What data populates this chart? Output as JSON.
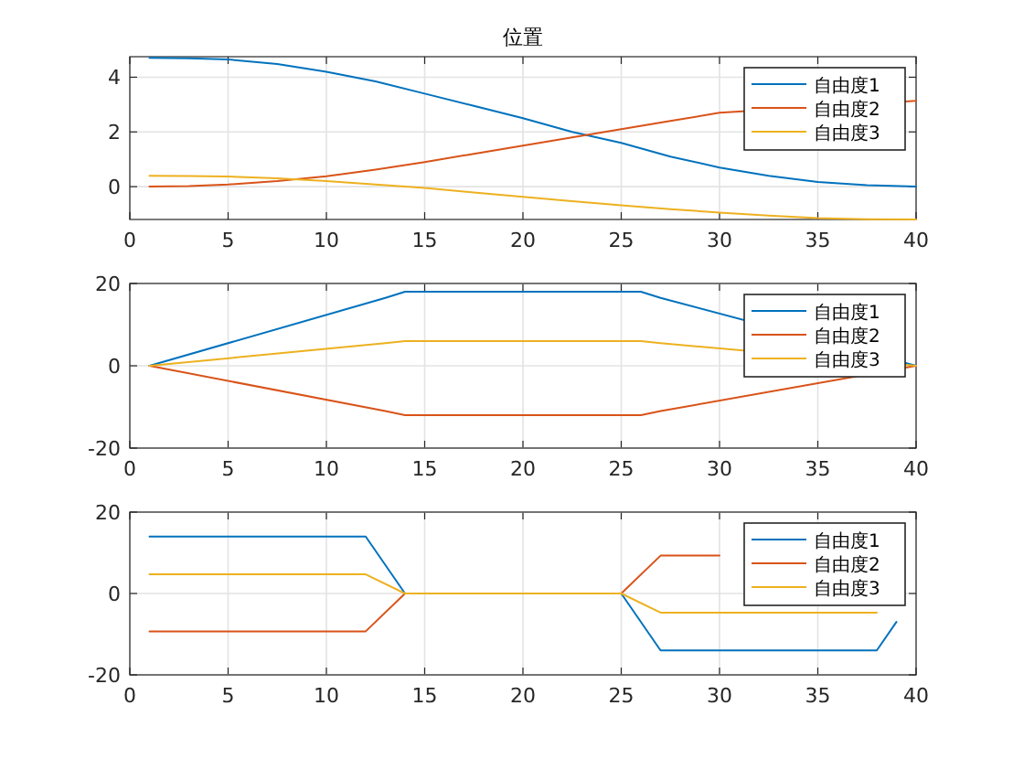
{
  "chart_data": [
    {
      "type": "line",
      "title": "位置",
      "xlim": [
        0,
        40
      ],
      "xticks": [
        0,
        5,
        10,
        15,
        20,
        25,
        30,
        35,
        40
      ],
      "ylim": [
        -1.2,
        4.75
      ],
      "yticks": [
        0,
        2,
        4
      ],
      "grid": true,
      "legend": "top right",
      "marker": "none",
      "line_style": "solid",
      "series": [
        {
          "name": "自由度1",
          "color": "#0072bd",
          "x": [
            1,
            3,
            5,
            7.5,
            10,
            12.5,
            15,
            17.5,
            20,
            22.5,
            25,
            27.5,
            30,
            32.5,
            35,
            37.5,
            40
          ],
          "values": [
            4.71,
            4.69,
            4.65,
            4.48,
            4.2,
            3.85,
            3.4,
            2.95,
            2.5,
            2.0,
            1.6,
            1.1,
            0.7,
            0.4,
            0.17,
            0.05,
            0
          ]
        },
        {
          "name": "自由度2",
          "color": "#d95319",
          "x": [
            1,
            3,
            5,
            7.5,
            10,
            12.5,
            15,
            17.5,
            20,
            22.5,
            25,
            27.5,
            30,
            40
          ],
          "values": [
            0,
            0.02,
            0.08,
            0.2,
            0.38,
            0.62,
            0.9,
            1.2,
            1.5,
            1.8,
            2.1,
            2.4,
            2.7,
            3.14
          ]
        },
        {
          "name": "自由度3",
          "color": "#edb120",
          "x": [
            1,
            3,
            5,
            7.5,
            10,
            12.5,
            15,
            17.5,
            20,
            22.5,
            25,
            27.5,
            30,
            32.5,
            35,
            37.5,
            40
          ],
          "values": [
            0.4,
            0.39,
            0.37,
            0.3,
            0.2,
            0.08,
            -0.05,
            -0.21,
            -0.37,
            -0.53,
            -0.68,
            -0.82,
            -0.95,
            -1.06,
            -1.15,
            -1.19,
            -1.2
          ]
        }
      ]
    },
    {
      "type": "line",
      "xlim": [
        0,
        40
      ],
      "xticks": [
        0,
        5,
        10,
        15,
        20,
        25,
        30,
        35,
        40
      ],
      "ylim": [
        -20,
        20
      ],
      "yticks": [
        -20,
        0,
        20
      ],
      "grid": true,
      "legend": "top right",
      "marker": "none",
      "line_style": "solid",
      "series": [
        {
          "name": "自由度1",
          "color": "#0072bd",
          "x": [
            1,
            13,
            14,
            26,
            27,
            40
          ],
          "values": [
            0,
            16.5,
            18,
            18,
            16.5,
            0
          ]
        },
        {
          "name": "自由度2",
          "color": "#d95319",
          "x": [
            1,
            13,
            14,
            26,
            27,
            40
          ],
          "values": [
            0,
            -11,
            -12,
            -12,
            -11,
            0
          ]
        },
        {
          "name": "自由度3",
          "color": "#edb120",
          "x": [
            1,
            13,
            14,
            26,
            27,
            40
          ],
          "values": [
            0,
            5.5,
            6,
            6,
            5.5,
            0
          ]
        }
      ]
    },
    {
      "type": "line",
      "xlim": [
        0,
        40
      ],
      "xticks": [
        0,
        5,
        10,
        15,
        20,
        25,
        30,
        35,
        40
      ],
      "ylim": [
        -20,
        20
      ],
      "yticks": [
        -20,
        0,
        20
      ],
      "grid": true,
      "legend": "top right",
      "marker": "none",
      "line_style": "solid",
      "series": [
        {
          "name": "自由度1",
          "color": "#0072bd",
          "x": [
            1,
            12,
            14,
            25,
            27,
            38,
            39
          ],
          "values": [
            14,
            14,
            0,
            0,
            -14,
            -14,
            -7
          ]
        },
        {
          "name": "自由度2",
          "color": "#d95319",
          "x": [
            1,
            12,
            14,
            25,
            27,
            30
          ],
          "values": [
            -9.3,
            -9.3,
            0,
            0,
            9.3,
            9.3
          ]
        },
        {
          "name": "自由度3",
          "color": "#edb120",
          "x": [
            1,
            12,
            14,
            25,
            27,
            38
          ],
          "values": [
            4.7,
            4.7,
            0,
            0,
            -4.7,
            -4.7
          ]
        }
      ]
    }
  ]
}
